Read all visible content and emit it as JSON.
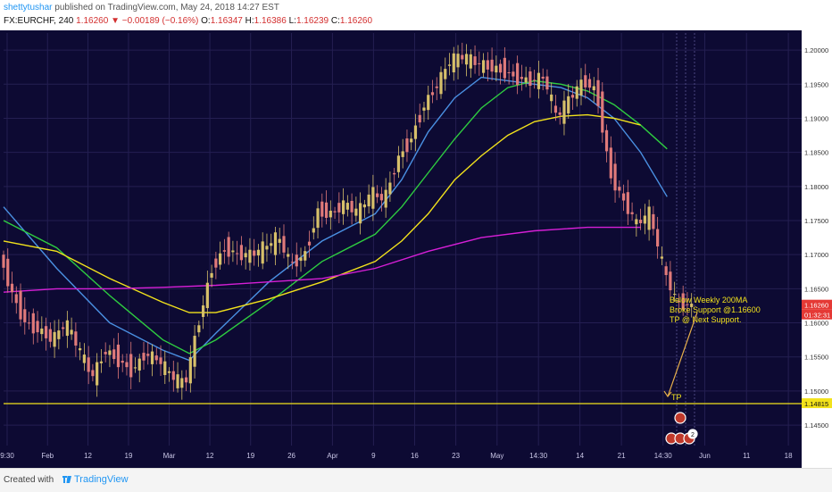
{
  "header": {
    "author": "shettytushar",
    "published": "published on TradingView.com, May 24, 2018 14:27 EST",
    "symbol": "FX:EURCHF, 240",
    "last": "1.16260",
    "change": "▼ −0.00189 (−0.16%)",
    "o_label": "O:",
    "o_value": "1.16347",
    "h_label": "H:",
    "h_value": "1.16386",
    "l_label": "L:",
    "l_value": "1.16239",
    "c_label": "C:",
    "c_value": "1.16260"
  },
  "footer": {
    "created_with": "Created with",
    "brand": "TradingView"
  },
  "colors": {
    "background": "#0d0a33",
    "grid": "#241f52",
    "candle_up": "#d7c06a",
    "candle_down": "#e07a7a",
    "ma_blue": "#4a90e2",
    "ma_green": "#2ecc40",
    "ma_yellow": "#f2e21c",
    "ma_magenta": "#d61fd6",
    "support_line": "#f2e21c",
    "arrow": "#e8b04b"
  },
  "chart_data": {
    "type": "candlestick",
    "x_tick_labels": [
      "9:30",
      "Feb",
      "12",
      "19",
      "Mar",
      "12",
      "19",
      "26",
      "Apr",
      "9",
      "16",
      "23",
      "May",
      "14:30",
      "14",
      "21",
      "14:30",
      "Jun",
      "11",
      "18"
    ],
    "y_tick_labels": [
      "1.20000",
      "1.19500",
      "1.19000",
      "1.18500",
      "1.18000",
      "1.17500",
      "1.17000",
      "1.16500",
      "1.16000",
      "1.15500",
      "1.15000",
      "1.14500"
    ],
    "ylim": [
      1.142,
      1.2025
    ],
    "price_marker": {
      "value": 1.1626,
      "label": "1.16260",
      "countdown": "01:32:31"
    },
    "support": {
      "value": 1.14815,
      "label": "1.14815"
    },
    "annotations": {
      "lines": [
        "Below Weekly 200MA",
        "Broke Support @1.16600",
        "TP @ Next Support."
      ],
      "tp_label": "TP"
    },
    "badge_count": "2",
    "price_path": [
      [
        0,
        1.17
      ],
      [
        5,
        1.164
      ],
      [
        10,
        1.16
      ],
      [
        15,
        1.159
      ],
      [
        20,
        1.1575
      ],
      [
        25,
        1.16
      ],
      [
        30,
        1.156
      ],
      [
        35,
        1.152
      ],
      [
        40,
        1.156
      ],
      [
        45,
        1.1545
      ],
      [
        50,
        1.153
      ],
      [
        55,
        1.1555
      ],
      [
        60,
        1.1545
      ],
      [
        65,
        1.152
      ],
      [
        70,
        1.151
      ],
      [
        75,
        1.16
      ],
      [
        80,
        1.168
      ],
      [
        85,
        1.171
      ],
      [
        90,
        1.17
      ],
      [
        95,
        1.17
      ],
      [
        100,
        1.171
      ],
      [
        105,
        1.1725
      ],
      [
        110,
        1.1685
      ],
      [
        115,
        1.17
      ],
      [
        120,
        1.1765
      ],
      [
        125,
        1.176
      ],
      [
        130,
        1.1775
      ],
      [
        135,
        1.176
      ],
      [
        140,
        1.179
      ],
      [
        145,
        1.178
      ],
      [
        150,
        1.184
      ],
      [
        155,
        1.187
      ],
      [
        160,
        1.192
      ],
      [
        165,
        1.195
      ],
      [
        170,
        1.1985
      ],
      [
        175,
        1.199
      ],
      [
        180,
        1.198
      ],
      [
        185,
        1.1975
      ],
      [
        190,
        1.197
      ],
      [
        195,
        1.196
      ],
      [
        200,
        1.1955
      ],
      [
        205,
        1.196
      ],
      [
        210,
        1.19
      ],
      [
        215,
        1.193
      ],
      [
        220,
        1.1955
      ],
      [
        225,
        1.194
      ],
      [
        230,
        1.182
      ],
      [
        235,
        1.178
      ],
      [
        240,
        1.1745
      ],
      [
        245,
        1.176
      ],
      [
        250,
        1.168
      ],
      [
        255,
        1.163
      ],
      [
        260,
        1.1626
      ]
    ],
    "ma_series": [
      {
        "color_key": "ma_blue",
        "points": [
          [
            0,
            1.177
          ],
          [
            20,
            1.168
          ],
          [
            40,
            1.16
          ],
          [
            60,
            1.156
          ],
          [
            70,
            1.1545
          ],
          [
            80,
            1.1585
          ],
          [
            100,
            1.166
          ],
          [
            120,
            1.172
          ],
          [
            140,
            1.176
          ],
          [
            150,
            1.181
          ],
          [
            160,
            1.188
          ],
          [
            170,
            1.193
          ],
          [
            180,
            1.196
          ],
          [
            200,
            1.195
          ],
          [
            210,
            1.1945
          ],
          [
            220,
            1.193
          ],
          [
            230,
            1.19
          ],
          [
            240,
            1.185
          ],
          [
            250,
            1.1785
          ]
        ]
      },
      {
        "color_key": "ma_green",
        "points": [
          [
            0,
            1.175
          ],
          [
            20,
            1.171
          ],
          [
            40,
            1.164
          ],
          [
            60,
            1.1575
          ],
          [
            70,
            1.1555
          ],
          [
            80,
            1.1575
          ],
          [
            100,
            1.163
          ],
          [
            120,
            1.169
          ],
          [
            140,
            1.173
          ],
          [
            150,
            1.177
          ],
          [
            160,
            1.182
          ],
          [
            170,
            1.187
          ],
          [
            180,
            1.1915
          ],
          [
            190,
            1.1945
          ],
          [
            200,
            1.1955
          ],
          [
            210,
            1.195
          ],
          [
            220,
            1.194
          ],
          [
            230,
            1.192
          ],
          [
            240,
            1.189
          ],
          [
            250,
            1.1855
          ]
        ]
      },
      {
        "color_key": "ma_yellow",
        "points": [
          [
            0,
            1.172
          ],
          [
            20,
            1.1705
          ],
          [
            40,
            1.1665
          ],
          [
            60,
            1.163
          ],
          [
            70,
            1.1615
          ],
          [
            80,
            1.1615
          ],
          [
            100,
            1.1635
          ],
          [
            120,
            1.166
          ],
          [
            140,
            1.169
          ],
          [
            150,
            1.172
          ],
          [
            160,
            1.176
          ],
          [
            170,
            1.181
          ],
          [
            180,
            1.1845
          ],
          [
            190,
            1.1875
          ],
          [
            200,
            1.1895
          ],
          [
            210,
            1.1903
          ],
          [
            220,
            1.1905
          ],
          [
            230,
            1.19
          ],
          [
            240,
            1.189
          ]
        ]
      },
      {
        "color_key": "ma_magenta",
        "points": [
          [
            0,
            1.1645
          ],
          [
            20,
            1.165
          ],
          [
            40,
            1.165
          ],
          [
            60,
            1.1652
          ],
          [
            80,
            1.1655
          ],
          [
            100,
            1.166
          ],
          [
            120,
            1.1665
          ],
          [
            140,
            1.168
          ],
          [
            160,
            1.1705
          ],
          [
            180,
            1.1725
          ],
          [
            200,
            1.1735
          ],
          [
            220,
            1.174
          ],
          [
            240,
            1.174
          ]
        ]
      }
    ]
  }
}
